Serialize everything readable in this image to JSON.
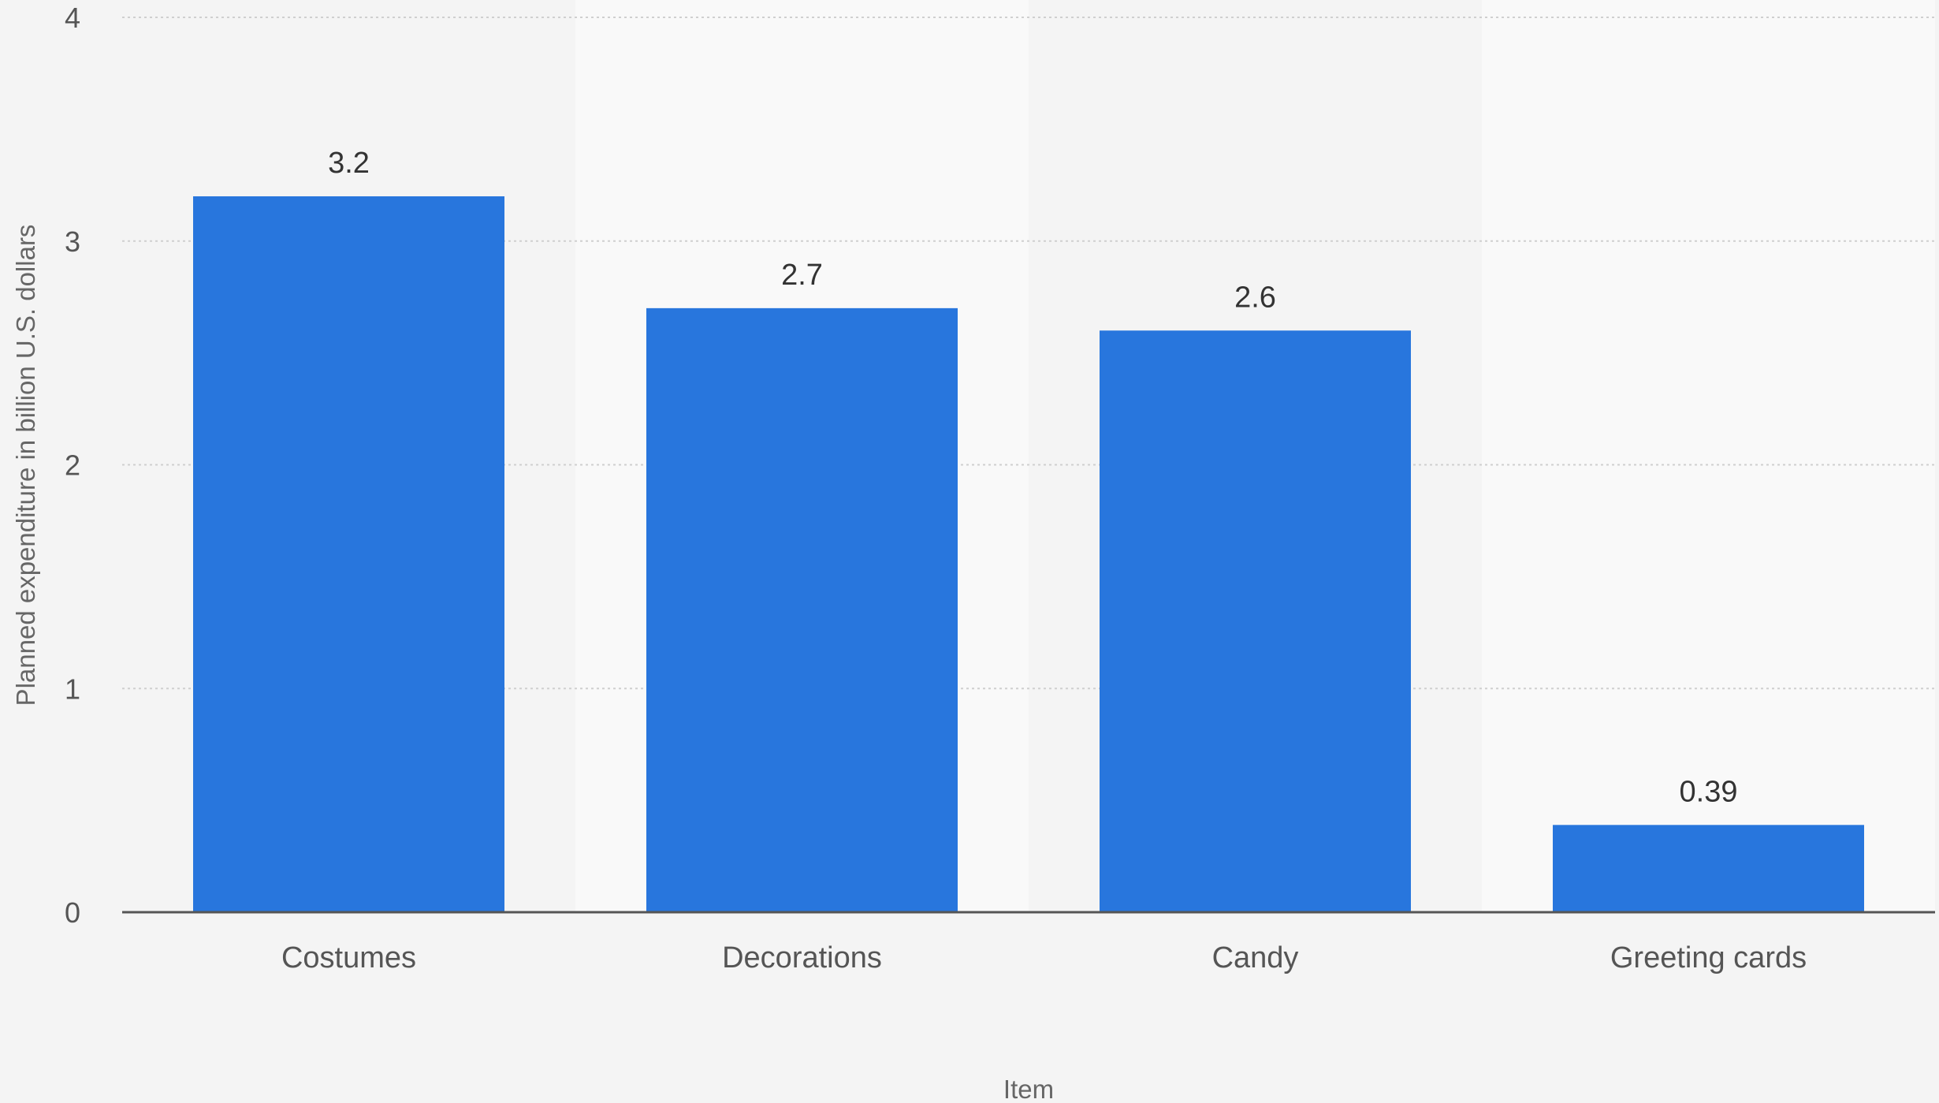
{
  "chart_data": {
    "type": "bar",
    "categories": [
      "Costumes",
      "Decorations",
      "Candy",
      "Greeting cards"
    ],
    "values": [
      3.2,
      2.7,
      2.6,
      0.39
    ],
    "value_labels": [
      "3.2",
      "2.7",
      "2.6",
      "0.39"
    ],
    "title": "",
    "xlabel": "Item",
    "ylabel": "Planned expenditure in billion U.S. dollars",
    "ylim": [
      0,
      4
    ],
    "yticks": [
      0,
      1,
      2,
      3,
      4
    ],
    "ytick_labels": [
      "0",
      "1",
      "2",
      "3",
      "4"
    ],
    "grid": true,
    "legend": "none",
    "colors": {
      "bar": "#2876dd",
      "band_alt": "#f9f9f9",
      "background": "#f4f4f4",
      "axis": "#555555"
    }
  }
}
